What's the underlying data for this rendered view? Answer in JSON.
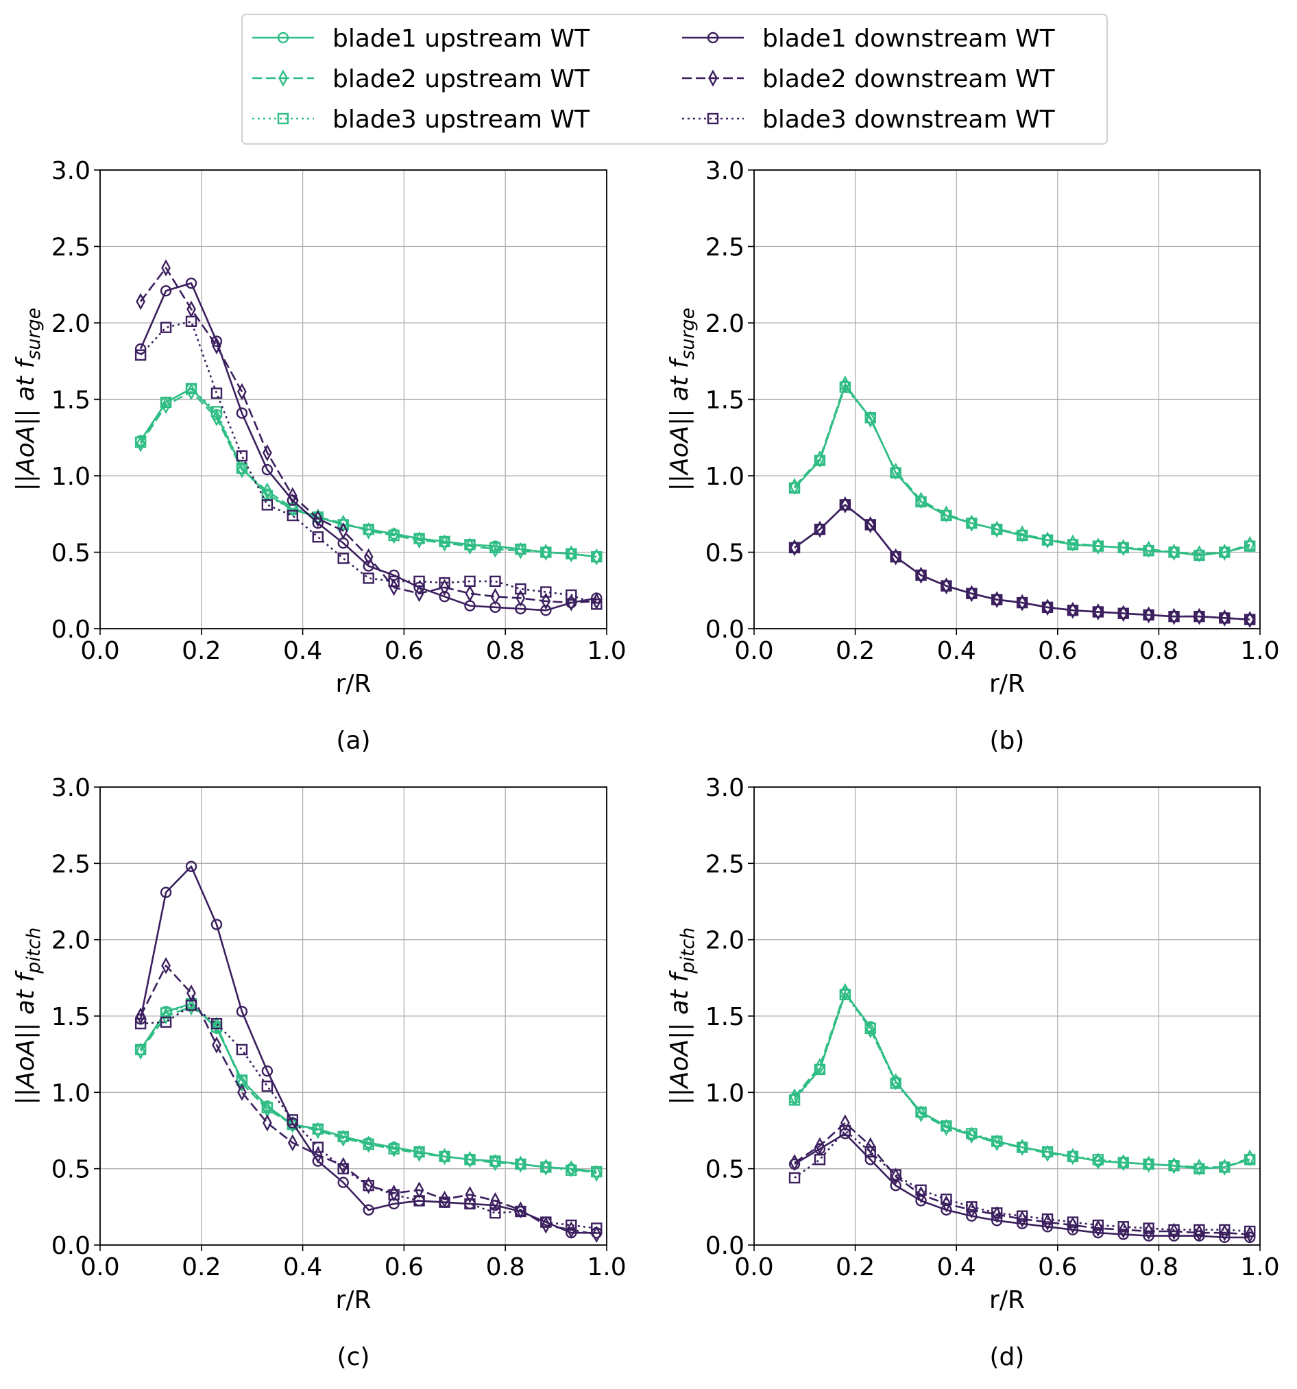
{
  "legend": [
    {
      "name": "blade1 upstream WT",
      "color": "#2fbd85",
      "linestyle": "solid",
      "marker": "circle"
    },
    {
      "name": "blade2 upstream WT",
      "color": "#2fbd85",
      "linestyle": "dashed",
      "marker": "diamond"
    },
    {
      "name": "blade3 upstream WT",
      "color": "#2fbd85",
      "linestyle": "dotted",
      "marker": "square"
    },
    {
      "name": "blade1 downstream WT",
      "color": "#3b1f5e",
      "linestyle": "solid",
      "marker": "circle"
    },
    {
      "name": "blade2 downstream WT",
      "color": "#3b1f5e",
      "linestyle": "dashed",
      "marker": "diamond"
    },
    {
      "name": "blade3 downstream WT",
      "color": "#3b1f5e",
      "linestyle": "dotted",
      "marker": "square"
    }
  ],
  "chart_data": [
    {
      "type": "line",
      "caption": "(a)",
      "xlabel": "r/R",
      "ylabel": "||AoA|| at f",
      "ylabel_sub": "surge",
      "xlim": [
        0,
        1
      ],
      "ylim": [
        0,
        3
      ],
      "grid": true,
      "xticks": [
        {
          "value": 0,
          "label": "0.0"
        },
        0.2,
        0.4,
        0.6,
        0.8,
        {
          "value": 1,
          "label": "1.0"
        }
      ],
      "yticks": [
        {
          "value": 0,
          "label": "0.0"
        },
        0.5,
        {
          "value": 1,
          "label": "1.0"
        },
        1.5,
        {
          "value": 2,
          "label": "2.0"
        },
        2.5,
        {
          "value": 3,
          "label": "3.0"
        }
      ],
      "x": [
        0.08,
        0.13,
        0.18,
        0.23,
        0.28,
        0.33,
        0.38,
        0.43,
        0.48,
        0.53,
        0.58,
        0.63,
        0.68,
        0.73,
        0.78,
        0.83,
        0.88,
        0.93,
        0.98
      ],
      "series": [
        {
          "values": [
            1.23,
            1.48,
            1.57,
            1.4,
            1.05,
            0.88,
            0.78,
            0.73,
            0.68,
            0.65,
            0.62,
            0.59,
            0.57,
            0.55,
            0.54,
            0.52,
            0.5,
            0.49,
            0.47
          ]
        },
        {
          "values": [
            1.21,
            1.46,
            1.55,
            1.38,
            1.04,
            0.9,
            0.79,
            0.73,
            0.69,
            0.64,
            0.61,
            0.58,
            0.56,
            0.54,
            0.52,
            0.51,
            0.5,
            0.49,
            0.47
          ]
        },
        {
          "values": [
            1.22,
            1.48,
            1.57,
            1.42,
            1.05,
            0.87,
            0.78,
            0.73,
            0.68,
            0.65,
            0.61,
            0.59,
            0.57,
            0.55,
            0.53,
            0.52,
            0.5,
            0.49,
            0.47
          ]
        },
        {
          "values": [
            1.83,
            2.21,
            2.26,
            1.88,
            1.41,
            1.04,
            0.84,
            0.69,
            0.56,
            0.41,
            0.35,
            0.27,
            0.21,
            0.15,
            0.14,
            0.13,
            0.12,
            0.17,
            0.2
          ]
        },
        {
          "values": [
            2.14,
            2.36,
            2.09,
            1.85,
            1.55,
            1.15,
            0.87,
            0.72,
            0.64,
            0.47,
            0.27,
            0.23,
            0.27,
            0.23,
            0.21,
            0.2,
            0.18,
            0.17,
            0.18
          ]
        },
        {
          "values": [
            1.79,
            1.97,
            2.01,
            1.54,
            1.13,
            0.81,
            0.74,
            0.6,
            0.46,
            0.33,
            0.31,
            0.31,
            0.3,
            0.31,
            0.31,
            0.26,
            0.24,
            0.22,
            0.16
          ]
        }
      ]
    },
    {
      "type": "line",
      "caption": "(b)",
      "xlabel": "r/R",
      "ylabel": "||AoA|| at f",
      "ylabel_sub": "surge",
      "xlim": [
        0,
        1
      ],
      "ylim": [
        0,
        3
      ],
      "grid": true,
      "xticks": [
        {
          "value": 0,
          "label": "0.0"
        },
        0.2,
        0.4,
        0.6,
        0.8,
        {
          "value": 1,
          "label": "1.0"
        }
      ],
      "yticks": [
        {
          "value": 0,
          "label": "0.0"
        },
        0.5,
        {
          "value": 1,
          "label": "1.0"
        },
        1.5,
        {
          "value": 2,
          "label": "2.0"
        },
        2.5,
        {
          "value": 3,
          "label": "3.0"
        }
      ],
      "x": [
        0.08,
        0.13,
        0.18,
        0.23,
        0.28,
        0.33,
        0.38,
        0.43,
        0.48,
        0.53,
        0.58,
        0.63,
        0.68,
        0.73,
        0.78,
        0.83,
        0.88,
        0.93,
        0.98
      ],
      "series": [
        {
          "values": [
            0.92,
            1.1,
            1.59,
            1.38,
            1.02,
            0.83,
            0.74,
            0.69,
            0.65,
            0.61,
            0.58,
            0.55,
            0.54,
            0.53,
            0.51,
            0.5,
            0.48,
            0.5,
            0.54
          ]
        },
        {
          "values": [
            0.93,
            1.11,
            1.6,
            1.37,
            1.03,
            0.84,
            0.75,
            0.69,
            0.65,
            0.62,
            0.58,
            0.56,
            0.54,
            0.53,
            0.52,
            0.5,
            0.49,
            0.5,
            0.55
          ]
        },
        {
          "values": [
            0.92,
            1.1,
            1.58,
            1.38,
            1.02,
            0.83,
            0.74,
            0.69,
            0.65,
            0.61,
            0.58,
            0.55,
            0.54,
            0.53,
            0.51,
            0.5,
            0.48,
            0.5,
            0.54
          ]
        },
        {
          "values": [
            0.53,
            0.65,
            0.81,
            0.68,
            0.47,
            0.35,
            0.28,
            0.23,
            0.19,
            0.17,
            0.14,
            0.12,
            0.11,
            0.1,
            0.09,
            0.08,
            0.08,
            0.07,
            0.06
          ]
        },
        {
          "values": [
            0.53,
            0.65,
            0.81,
            0.68,
            0.47,
            0.35,
            0.28,
            0.23,
            0.19,
            0.17,
            0.14,
            0.12,
            0.11,
            0.1,
            0.09,
            0.08,
            0.08,
            0.07,
            0.06
          ]
        },
        {
          "values": [
            0.53,
            0.65,
            0.81,
            0.68,
            0.47,
            0.35,
            0.28,
            0.23,
            0.19,
            0.17,
            0.14,
            0.12,
            0.11,
            0.1,
            0.09,
            0.08,
            0.08,
            0.07,
            0.06
          ]
        }
      ]
    },
    {
      "type": "line",
      "caption": "(c)",
      "xlabel": "r/R",
      "ylabel": "||AoA|| at f",
      "ylabel_sub": "pitch",
      "xlim": [
        0,
        1
      ],
      "ylim": [
        0,
        3
      ],
      "grid": true,
      "xticks": [
        {
          "value": 0,
          "label": "0.0"
        },
        0.2,
        0.4,
        0.6,
        0.8,
        {
          "value": 1,
          "label": "1.0"
        }
      ],
      "yticks": [
        {
          "value": 0,
          "label": "0.0"
        },
        0.5,
        {
          "value": 1,
          "label": "1.0"
        },
        1.5,
        {
          "value": 2,
          "label": "2.0"
        },
        2.5,
        {
          "value": 3,
          "label": "3.0"
        }
      ],
      "x": [
        0.08,
        0.13,
        0.18,
        0.23,
        0.28,
        0.33,
        0.38,
        0.43,
        0.48,
        0.53,
        0.58,
        0.63,
        0.68,
        0.73,
        0.78,
        0.83,
        0.88,
        0.93,
        0.98
      ],
      "series": [
        {
          "values": [
            1.28,
            1.53,
            1.58,
            1.42,
            1.08,
            0.91,
            0.79,
            0.76,
            0.71,
            0.67,
            0.64,
            0.61,
            0.58,
            0.56,
            0.55,
            0.53,
            0.51,
            0.5,
            0.48
          ]
        },
        {
          "values": [
            1.27,
            1.5,
            1.56,
            1.44,
            1.06,
            0.89,
            0.79,
            0.75,
            0.7,
            0.66,
            0.63,
            0.6,
            0.58,
            0.56,
            0.54,
            0.53,
            0.51,
            0.5,
            0.47
          ]
        },
        {
          "values": [
            1.28,
            1.52,
            1.58,
            1.43,
            1.08,
            0.9,
            0.79,
            0.76,
            0.71,
            0.66,
            0.63,
            0.61,
            0.58,
            0.56,
            0.55,
            0.53,
            0.51,
            0.49,
            0.48
          ]
        },
        {
          "values": [
            1.48,
            2.31,
            2.48,
            2.1,
            1.53,
            1.14,
            0.8,
            0.55,
            0.41,
            0.23,
            0.27,
            0.29,
            0.28,
            0.27,
            0.26,
            0.22,
            0.15,
            0.08,
            0.08
          ]
        },
        {
          "values": [
            1.5,
            1.83,
            1.65,
            1.31,
            1.0,
            0.8,
            0.67,
            0.59,
            0.52,
            0.39,
            0.34,
            0.36,
            0.3,
            0.33,
            0.29,
            0.23,
            0.13,
            0.1,
            0.07
          ]
        },
        {
          "values": [
            1.45,
            1.46,
            1.57,
            1.45,
            1.28,
            1.04,
            0.82,
            0.64,
            0.5,
            0.39,
            0.33,
            0.29,
            0.28,
            0.27,
            0.21,
            0.22,
            0.15,
            0.13,
            0.11
          ]
        }
      ]
    },
    {
      "type": "line",
      "caption": "(d)",
      "xlabel": "r/R",
      "ylabel": "||AoA|| at f",
      "ylabel_sub": "pitch",
      "xlim": [
        0,
        1
      ],
      "ylim": [
        0,
        3
      ],
      "grid": true,
      "xticks": [
        {
          "value": 0,
          "label": "0.0"
        },
        0.2,
        0.4,
        0.6,
        0.8,
        {
          "value": 1,
          "label": "1.0"
        }
      ],
      "yticks": [
        {
          "value": 0,
          "label": "0.0"
        },
        0.5,
        {
          "value": 1,
          "label": "1.0"
        },
        1.5,
        {
          "value": 2,
          "label": "2.0"
        },
        2.5,
        {
          "value": 3,
          "label": "3.0"
        }
      ],
      "x": [
        0.08,
        0.13,
        0.18,
        0.23,
        0.28,
        0.33,
        0.38,
        0.43,
        0.48,
        0.53,
        0.58,
        0.63,
        0.68,
        0.73,
        0.78,
        0.83,
        0.88,
        0.93,
        0.98
      ],
      "series": [
        {
          "values": [
            0.96,
            1.15,
            1.65,
            1.43,
            1.07,
            0.87,
            0.78,
            0.72,
            0.68,
            0.64,
            0.61,
            0.58,
            0.55,
            0.54,
            0.53,
            0.52,
            0.5,
            0.51,
            0.56
          ]
        },
        {
          "values": [
            0.97,
            1.17,
            1.66,
            1.41,
            1.07,
            0.86,
            0.77,
            0.72,
            0.67,
            0.64,
            0.6,
            0.58,
            0.55,
            0.54,
            0.53,
            0.52,
            0.51,
            0.51,
            0.57
          ]
        },
        {
          "values": [
            0.95,
            1.15,
            1.64,
            1.42,
            1.06,
            0.87,
            0.78,
            0.73,
            0.68,
            0.64,
            0.61,
            0.58,
            0.56,
            0.54,
            0.53,
            0.52,
            0.5,
            0.51,
            0.56
          ]
        },
        {
          "values": [
            0.53,
            0.63,
            0.73,
            0.56,
            0.39,
            0.29,
            0.23,
            0.19,
            0.16,
            0.14,
            0.12,
            0.1,
            0.08,
            0.07,
            0.06,
            0.06,
            0.06,
            0.05,
            0.05
          ]
        },
        {
          "values": [
            0.54,
            0.65,
            0.8,
            0.65,
            0.45,
            0.33,
            0.27,
            0.23,
            0.2,
            0.17,
            0.15,
            0.13,
            0.11,
            0.1,
            0.09,
            0.09,
            0.08,
            0.08,
            0.07
          ]
        },
        {
          "values": [
            0.44,
            0.56,
            0.75,
            0.61,
            0.46,
            0.36,
            0.3,
            0.25,
            0.21,
            0.19,
            0.17,
            0.15,
            0.13,
            0.12,
            0.11,
            0.1,
            0.1,
            0.1,
            0.09
          ]
        }
      ]
    }
  ]
}
